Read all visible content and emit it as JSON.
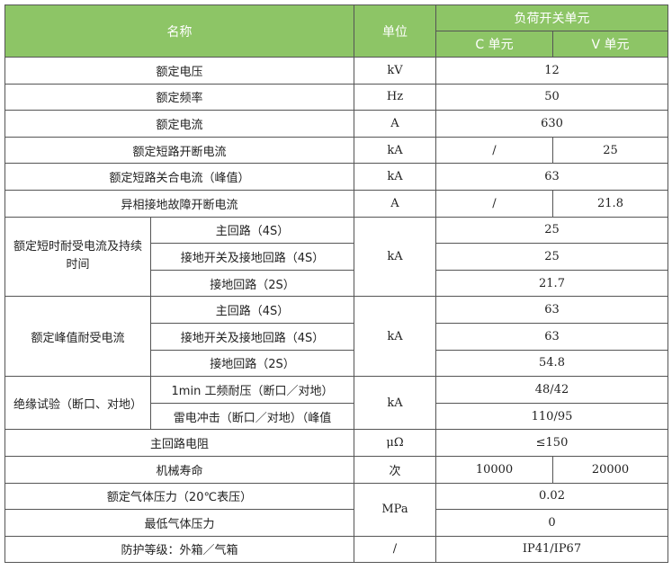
{
  "header": {
    "name": "名称",
    "unit": "单位",
    "group": "负荷开关单元",
    "c_unit": "C 单元",
    "v_unit": "V 单元"
  },
  "rows": [
    {
      "name": "额定电压",
      "unit": "kV",
      "value": "12"
    },
    {
      "name": "额定频率",
      "unit": "Hz",
      "value": "50"
    },
    {
      "name": "额定电流",
      "unit": "A",
      "value": "630"
    },
    {
      "name": "额定短路开断电流",
      "unit": "kA",
      "c": "/",
      "v": "25"
    },
    {
      "name": "额定短路关合电流（峰值）",
      "unit": "kA",
      "value": "63"
    },
    {
      "name": "异相接地故障开断电流",
      "unit": "A",
      "c": "/",
      "v": "21.8"
    }
  ],
  "short_time": {
    "name": "额定短时耐受电流及持续时间",
    "unit": "kA",
    "items": [
      {
        "label": "主回路（4S）",
        "value": "25"
      },
      {
        "label": "接地开关及接地回路（4S）",
        "value": "25"
      },
      {
        "label": "接地回路（2S）",
        "value": "21.7"
      }
    ]
  },
  "peak": {
    "name": "额定峰值耐受电流",
    "unit": "kA",
    "items": [
      {
        "label": "主回路（4S）",
        "value": "63"
      },
      {
        "label": "接地开关及接地回路（4S）",
        "value": "63"
      },
      {
        "label": "接地回路（2S）",
        "value": "54.8"
      }
    ]
  },
  "insulation": {
    "name": "绝缘试验（断口、对地）",
    "unit": "kA",
    "items": [
      {
        "label": "1min 工频耐压（断口／对地）",
        "value": "48/42"
      },
      {
        "label": "雷电冲击（断口／对地）（峰值",
        "value": "110/95"
      }
    ]
  },
  "resistance": {
    "name": "主回路电阻",
    "unit": "μΩ",
    "value": "≤150"
  },
  "life": {
    "name": "机械寿命",
    "unit": "次",
    "c": "10000",
    "v": "20000"
  },
  "pressure": {
    "unit": "MPa",
    "rated_name": "额定气体压力（20℃表压）",
    "rated_value": "0.02",
    "min_name": "最低气体压力",
    "min_value": "0"
  },
  "protection": {
    "name": "防护等级：外箱／气箱",
    "unit": "/",
    "value": "IP41/IP67"
  },
  "colors": {
    "header_bg": "#8dc566",
    "header_text": "#ffffff",
    "border": "#555555"
  }
}
